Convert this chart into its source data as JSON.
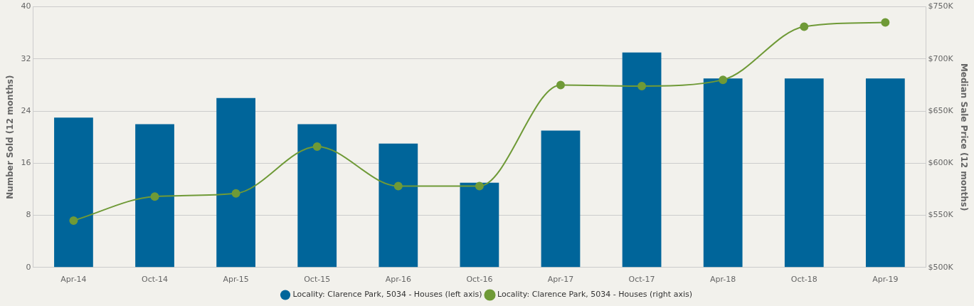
{
  "chart_data": {
    "type": "bar",
    "ylabel": "Number Sold (12 months)",
    "y2label": "Median Sale Price (12 months)",
    "categories": [
      "Apr-14",
      "Oct-14",
      "Apr-15",
      "Oct-15",
      "Apr-16",
      "Oct-16",
      "Apr-17",
      "Oct-17",
      "Apr-18",
      "Oct-18",
      "Apr-19"
    ],
    "series": [
      {
        "name": "Locality: Clarence Park, 5034 - Houses (left axis)",
        "color": "#00659a",
        "values": [
          23,
          22,
          26,
          22,
          19,
          13,
          21,
          33,
          29,
          29,
          29
        ]
      },
      {
        "name": "Locality: Clarence Park, 5034 - Houses (right axis)",
        "type": "line",
        "axis": "y2",
        "color": "#6f9a37",
        "values": [
          545000,
          568000,
          571000,
          616000,
          578000,
          578000,
          675000,
          674000,
          680000,
          731000,
          735000
        ]
      }
    ],
    "ylim": [
      0,
      40
    ],
    "yticks": [
      0,
      8,
      16,
      24,
      32,
      40
    ],
    "y2lim": [
      500000,
      750000
    ],
    "y2ticks": [
      {
        "value": 500000,
        "label": "$500K"
      },
      {
        "value": 550000,
        "label": "$550K"
      },
      {
        "value": 600000,
        "label": "$600K"
      },
      {
        "value": 650000,
        "label": "$650K"
      },
      {
        "value": 700000,
        "label": "$700K"
      },
      {
        "value": 750000,
        "label": "$750K"
      }
    ],
    "grid": "y",
    "legend": "bottom",
    "marker": "circle"
  }
}
